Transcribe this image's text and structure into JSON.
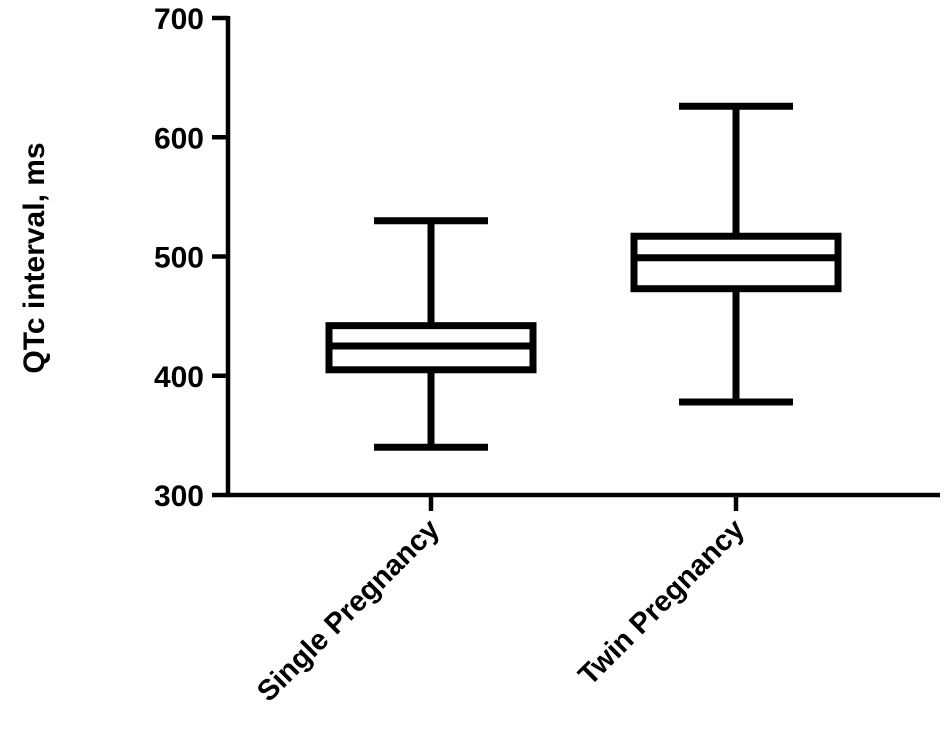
{
  "chart_data": {
    "type": "box",
    "ylabel": "QTc interval, ms",
    "ylim": [
      300,
      700
    ],
    "yticks": [
      300,
      400,
      500,
      600,
      700
    ],
    "categories": [
      "Single Pregnancy",
      "Twin Pregnancy"
    ],
    "boxes": [
      {
        "category": "Single Pregnancy",
        "min": 340,
        "q1": 405,
        "median": 425,
        "q3": 442,
        "max": 530
      },
      {
        "category": "Twin Pregnancy",
        "min": 378,
        "q1": 473,
        "median": 499,
        "q3": 517,
        "max": 626
      }
    ],
    "grid": false,
    "legend": "none"
  }
}
